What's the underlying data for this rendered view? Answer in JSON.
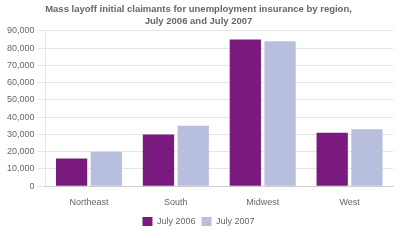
{
  "chart_data": {
    "type": "bar",
    "title": "Mass layoff initial claimants for unemployment insurance by region,\nJuly 2006 and July 2007",
    "categories": [
      "Northeast",
      "South",
      "Midwest",
      "West"
    ],
    "series": [
      {
        "name": "July 2006",
        "color": "#7b1a7e",
        "values": [
          16000,
          30000,
          85000,
          31000
        ]
      },
      {
        "name": "July 2007",
        "color": "#b8bedd",
        "values": [
          20000,
          35000,
          84000,
          33000
        ]
      }
    ],
    "ylim": [
      0,
      90000
    ],
    "yticks": [
      0,
      {
        "value": 10000,
        "label": "10,000"
      },
      {
        "value": 20000,
        "label": "20,000"
      },
      {
        "value": 30000,
        "label": "30,000"
      },
      {
        "value": 40000,
        "label": "40,000"
      },
      {
        "value": 50000,
        "label": "50,000"
      },
      {
        "value": 60000,
        "label": "60,000"
      },
      {
        "value": 70000,
        "label": "70,000"
      },
      {
        "value": 80000,
        "label": "80,000"
      },
      {
        "value": 90000,
        "label": "90,000"
      }
    ],
    "grid": true,
    "legend": "bottom"
  }
}
